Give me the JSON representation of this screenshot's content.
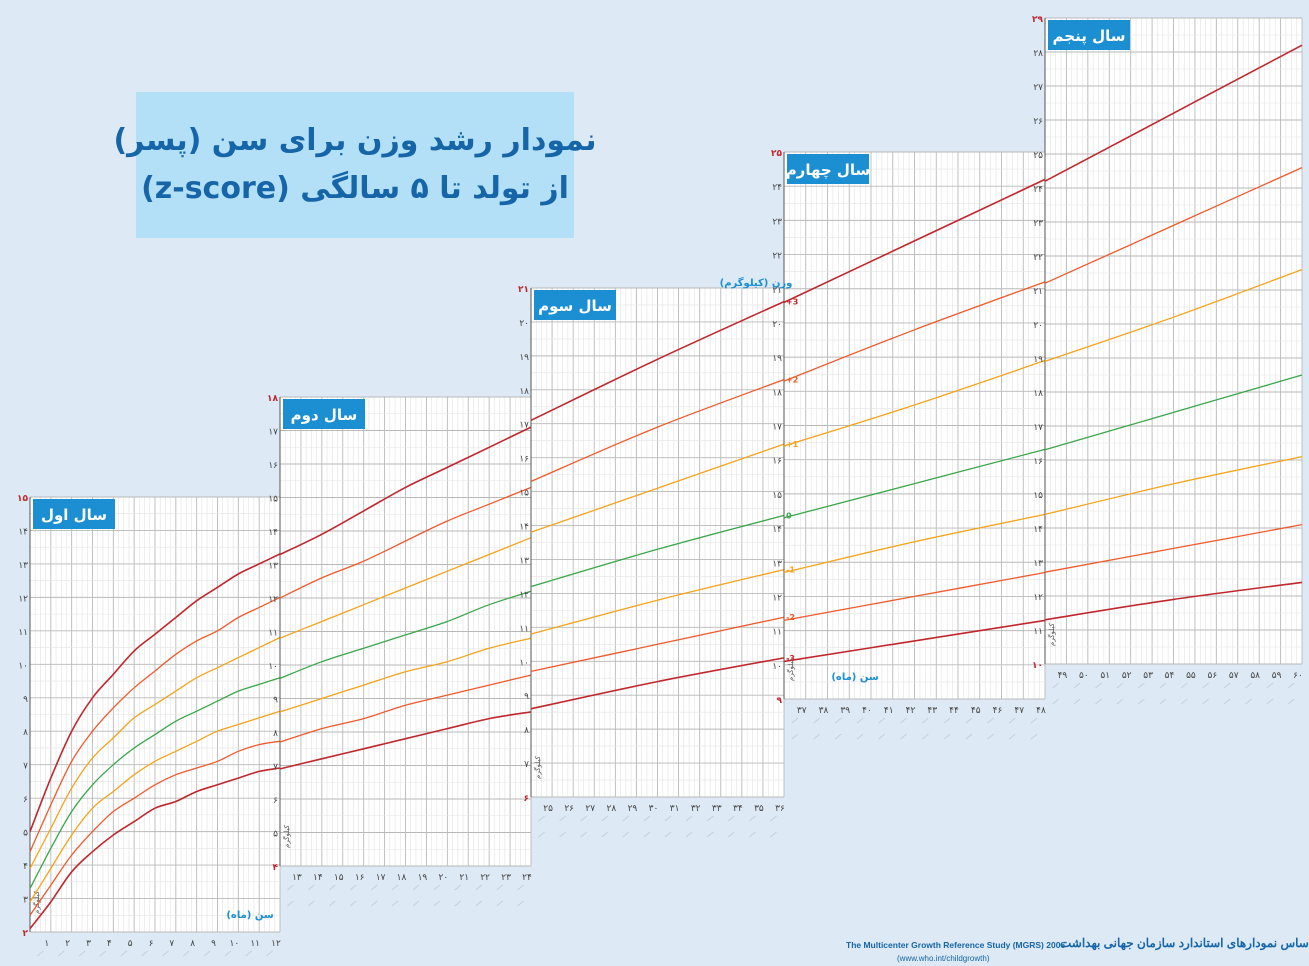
{
  "title": {
    "line1": "نمودار رشد وزن برای سن (پسر)",
    "line2": "از تولد تا ۵ سالگی (z-score)"
  },
  "source": {
    "persian": "براساس نمودارهای استاندارد سازمان جهانی بهداشت",
    "english": "The Multicenter Growth Reference Study (MGRS) 2006",
    "url": "(www.who.int/childgrowth)"
  },
  "axis_labels": {
    "weight": "وزن (کیلوگرم)",
    "age": "سن (ماه)",
    "kg": "کیلوگرم"
  },
  "colors": {
    "sd3": "#c0272d",
    "sd2": "#ef5a2b",
    "sd1": "#f5a31a",
    "median": "#3aa64a",
    "panel_label_bg": "#1b8fd2",
    "title_bg": "#b3e0f7",
    "title_text": "#1565a8"
  },
  "z_labels": [
    "+3",
    "+2",
    "+1",
    "0",
    "-1",
    "-2",
    "-3"
  ],
  "chart_data": {
    "type": "line",
    "title": "نمودار رشد وزن برای سن (پسر) از تولد تا ۵ سالگی (z-score)",
    "xlabel": "سن (ماه)",
    "ylabel": "وزن (کیلوگرم)",
    "grid": true,
    "series_names": [
      "+3",
      "+2",
      "+1",
      "0",
      "-1",
      "-2",
      "-3"
    ],
    "panels": [
      {
        "label": "سال اول",
        "x_range": [
          0,
          12
        ],
        "ylim": [
          2,
          15
        ],
        "x_ticks": [
          "۱",
          "۲",
          "۳",
          "۴",
          "۵",
          "۶",
          "۷",
          "۸",
          "۹",
          "۱۰",
          "۱۱",
          "۱۲"
        ],
        "y_ticks": [
          "۲",
          "۳",
          "۴",
          "۵",
          "۶",
          "۷",
          "۸",
          "۹",
          "۱۰",
          "۱۱",
          "۱۲",
          "۱۳",
          "۱۴",
          "۱۵"
        ],
        "x": [
          0,
          1,
          2,
          3,
          4,
          5,
          6,
          7,
          8,
          9,
          10,
          11,
          12
        ],
        "series": [
          {
            "z": "+3",
            "values": [
              5.0,
              6.6,
              8.0,
              9.0,
              9.7,
              10.4,
              10.9,
              11.4,
              11.9,
              12.3,
              12.7,
              13.0,
              13.3
            ]
          },
          {
            "z": "+2",
            "values": [
              4.4,
              5.8,
              7.1,
              8.0,
              8.7,
              9.3,
              9.8,
              10.3,
              10.7,
              11.0,
              11.4,
              11.7,
              12.0
            ]
          },
          {
            "z": "+1",
            "values": [
              3.9,
              5.1,
              6.3,
              7.2,
              7.8,
              8.4,
              8.8,
              9.2,
              9.6,
              9.9,
              10.2,
              10.5,
              10.8
            ]
          },
          {
            "z": "0",
            "values": [
              3.3,
              4.5,
              5.6,
              6.4,
              7.0,
              7.5,
              7.9,
              8.3,
              8.6,
              8.9,
              9.2,
              9.4,
              9.6
            ]
          },
          {
            "z": "-1",
            "values": [
              2.9,
              3.9,
              4.9,
              5.7,
              6.2,
              6.7,
              7.1,
              7.4,
              7.7,
              8.0,
              8.2,
              8.4,
              8.6
            ]
          },
          {
            "z": "-2",
            "values": [
              2.5,
              3.4,
              4.3,
              5.0,
              5.6,
              6.0,
              6.4,
              6.7,
              6.9,
              7.1,
              7.4,
              7.6,
              7.7
            ]
          },
          {
            "z": "-3",
            "values": [
              2.1,
              2.9,
              3.8,
              4.4,
              4.9,
              5.3,
              5.7,
              5.9,
              6.2,
              6.4,
              6.6,
              6.8,
              6.9
            ]
          }
        ]
      },
      {
        "label": "سال دوم",
        "x_range": [
          12,
          24
        ],
        "ylim": [
          4,
          18
        ],
        "x_ticks": [
          "۱۳",
          "۱۴",
          "۱۵",
          "۱۶",
          "۱۷",
          "۱۸",
          "۱۹",
          "۲۰",
          "۲۱",
          "۲۲",
          "۲۳",
          "۲۴"
        ],
        "y_ticks": [
          "۴",
          "۵",
          "۶",
          "۷",
          "۸",
          "۹",
          "۱۰",
          "۱۱",
          "۱۲",
          "۱۳",
          "۱۴",
          "۱۵",
          "۱۶",
          "۱۷",
          "۱۸"
        ],
        "x": [
          12,
          14,
          16,
          18,
          20,
          22,
          24
        ],
        "series": [
          {
            "z": "+3",
            "values": [
              13.3,
              13.9,
              14.6,
              15.3,
              15.9,
              16.5,
              17.1
            ]
          },
          {
            "z": "+2",
            "values": [
              12.0,
              12.6,
              13.1,
              13.7,
              14.3,
              14.8,
              15.3
            ]
          },
          {
            "z": "+1",
            "values": [
              10.8,
              11.3,
              11.8,
              12.3,
              12.8,
              13.3,
              13.8
            ]
          },
          {
            "z": "0",
            "values": [
              9.6,
              10.1,
              10.5,
              10.9,
              11.3,
              11.8,
              12.2
            ]
          },
          {
            "z": "-1",
            "values": [
              8.6,
              9.0,
              9.4,
              9.8,
              10.1,
              10.5,
              10.8
            ]
          },
          {
            "z": "-2",
            "values": [
              7.7,
              8.1,
              8.4,
              8.8,
              9.1,
              9.4,
              9.7
            ]
          },
          {
            "z": "-3",
            "values": [
              6.9,
              7.2,
              7.5,
              7.8,
              8.1,
              8.4,
              8.6
            ]
          }
        ]
      },
      {
        "label": "سال سوم",
        "x_range": [
          24,
          36
        ],
        "ylim": [
          6,
          21
        ],
        "x_ticks": [
          "۲۵",
          "۲۶",
          "۲۷",
          "۲۸",
          "۲۹",
          "۳۰",
          "۳۱",
          "۳۲",
          "۳۳",
          "۳۴",
          "۳۵",
          "۳۶"
        ],
        "y_ticks": [
          "۶",
          "۷",
          "۸",
          "۹",
          "۱۰",
          "۱۱",
          "۱۲",
          "۱۳",
          "۱۴",
          "۱۵",
          "۱۶",
          "۱۷",
          "۱۸",
          "۱۹",
          "۲۰",
          "۲۱"
        ],
        "x": [
          24,
          30,
          36
        ],
        "series": [
          {
            "z": "+3",
            "values": [
              17.1,
              18.9,
              20.6
            ]
          },
          {
            "z": "+2",
            "values": [
              15.3,
              16.9,
              18.3
            ]
          },
          {
            "z": "+1",
            "values": [
              13.8,
              15.1,
              16.4
            ]
          },
          {
            "z": "0",
            "values": [
              12.2,
              13.3,
              14.3
            ]
          },
          {
            "z": "-1",
            "values": [
              10.8,
              11.8,
              12.7
            ]
          },
          {
            "z": "-2",
            "values": [
              9.7,
              10.5,
              11.3
            ]
          },
          {
            "z": "-3",
            "values": [
              8.6,
              9.4,
              10.1
            ]
          }
        ]
      },
      {
        "label": "سال چهارم",
        "x_range": [
          36,
          48
        ],
        "ylim": [
          9,
          25
        ],
        "x_ticks": [
          "۳۷",
          "۳۸",
          "۳۹",
          "۴۰",
          "۴۱",
          "۴۲",
          "۴۳",
          "۴۴",
          "۴۵",
          "۴۶",
          "۴۷",
          "۴۸"
        ],
        "y_ticks": [
          "۹",
          "۱۰",
          "۱۱",
          "۱۲",
          "۱۳",
          "۱۴",
          "۱۵",
          "۱۶",
          "۱۷",
          "۱۸",
          "۱۹",
          "۲۰",
          "۲۱",
          "۲۲",
          "۲۳",
          "۲۴",
          "۲۵"
        ],
        "x": [
          36,
          42,
          48
        ],
        "series": [
          {
            "z": "+3",
            "values": [
              20.6,
              22.4,
              24.2
            ]
          },
          {
            "z": "+2",
            "values": [
              18.3,
              19.8,
              21.2
            ]
          },
          {
            "z": "+1",
            "values": [
              16.4,
              17.6,
              18.9
            ]
          },
          {
            "z": "0",
            "values": [
              14.3,
              15.3,
              16.3
            ]
          },
          {
            "z": "-1",
            "values": [
              12.7,
              13.6,
              14.4
            ]
          },
          {
            "z": "-2",
            "values": [
              11.3,
              12.0,
              12.7
            ]
          },
          {
            "z": "-3",
            "values": [
              10.1,
              10.7,
              11.3
            ]
          }
        ]
      },
      {
        "label": "سال پنجم",
        "x_range": [
          48,
          60
        ],
        "ylim": [
          10,
          29
        ],
        "x_ticks": [
          "۴۹",
          "۵۰",
          "۵۱",
          "۵۲",
          "۵۳",
          "۵۴",
          "۵۵",
          "۵۶",
          "۵۷",
          "۵۸",
          "۵۹",
          "۶۰"
        ],
        "y_ticks": [
          "۱۰",
          "۱۱",
          "۱۲",
          "۱۳",
          "۱۴",
          "۱۵",
          "۱۶",
          "۱۷",
          "۱۸",
          "۱۹",
          "۲۰",
          "۲۱",
          "۲۲",
          "۲۳",
          "۲۴",
          "۲۵",
          "۲۶",
          "۲۷",
          "۲۸",
          "۲۹"
        ],
        "x": [
          48,
          54,
          60
        ],
        "series": [
          {
            "z": "+3",
            "values": [
              24.2,
              26.2,
              28.2
            ]
          },
          {
            "z": "+2",
            "values": [
              21.2,
              22.9,
              24.6
            ]
          },
          {
            "z": "+1",
            "values": [
              18.9,
              20.2,
              21.6
            ]
          },
          {
            "z": "0",
            "values": [
              16.3,
              17.4,
              18.5
            ]
          },
          {
            "z": "-1",
            "values": [
              14.4,
              15.3,
              16.1
            ]
          },
          {
            "z": "-2",
            "values": [
              12.7,
              13.4,
              14.1
            ]
          },
          {
            "z": "-3",
            "values": [
              11.3,
              11.9,
              12.4
            ]
          }
        ]
      }
    ]
  }
}
